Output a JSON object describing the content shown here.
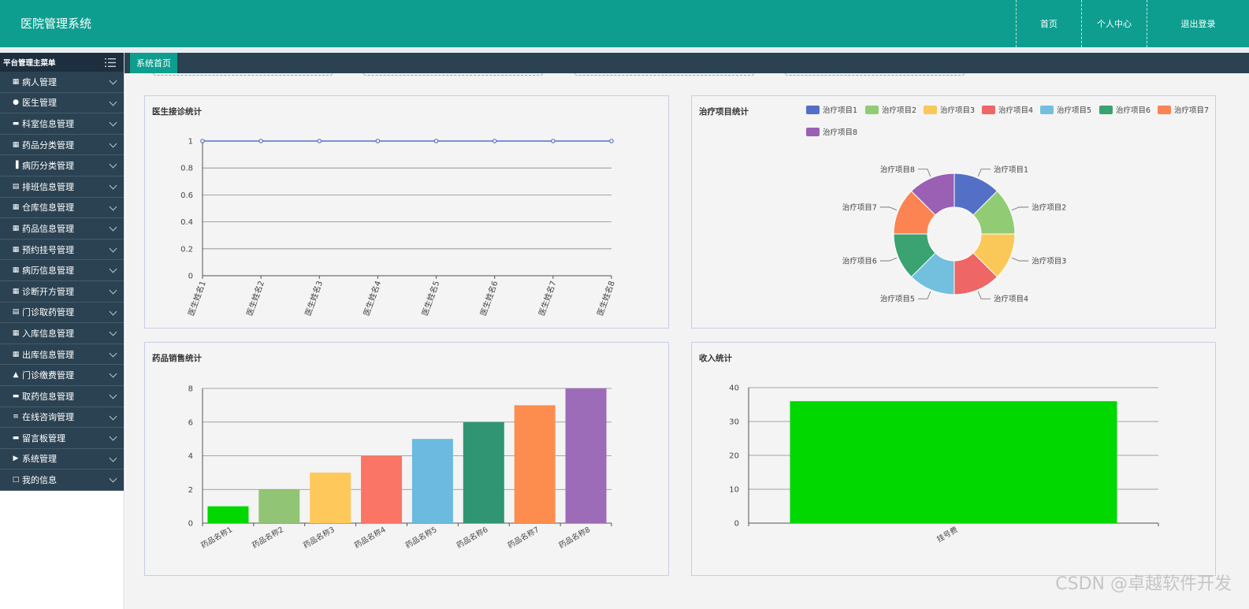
{
  "header": {
    "title": "医院管理系统",
    "nav": [
      "首页",
      "个人中心",
      "退出登录"
    ]
  },
  "sidebar": {
    "title": "平台管理主菜单",
    "items": [
      {
        "label": "病人管理",
        "icon": "grid-icon"
      },
      {
        "label": "医生管理",
        "icon": "pin-icon"
      },
      {
        "label": "科室信息管理",
        "icon": "monitor-icon"
      },
      {
        "label": "药品分类管理",
        "icon": "grid-icon"
      },
      {
        "label": "病历分类管理",
        "icon": "bar-chart-icon"
      },
      {
        "label": "排班信息管理",
        "icon": "clipboard-icon"
      },
      {
        "label": "仓库信息管理",
        "icon": "grid-icon"
      },
      {
        "label": "药品信息管理",
        "icon": "grid-icon"
      },
      {
        "label": "预约挂号管理",
        "icon": "grid-icon"
      },
      {
        "label": "病历信息管理",
        "icon": "grid-icon"
      },
      {
        "label": "诊断开方管理",
        "icon": "grid-icon"
      },
      {
        "label": "门诊取药管理",
        "icon": "clipboard-icon"
      },
      {
        "label": "入库信息管理",
        "icon": "grid-icon"
      },
      {
        "label": "出库信息管理",
        "icon": "table-icon"
      },
      {
        "label": "门诊缴费管理",
        "icon": "user-icon"
      },
      {
        "label": "取药信息管理",
        "icon": "ticket-icon"
      },
      {
        "label": "在线咨询管理",
        "icon": "list-icon"
      },
      {
        "label": "留言板管理",
        "icon": "chat-icon"
      },
      {
        "label": "系统管理",
        "icon": "send-icon"
      },
      {
        "label": "我的信息",
        "icon": "card-icon"
      }
    ]
  },
  "tabs": {
    "active": "系统首页"
  },
  "watermark": "CSDN @卓越软件开发",
  "chart_data": [
    {
      "type": "line",
      "title": "医生接诊统计",
      "categories": [
        "医生姓名1",
        "医生姓名2",
        "医生姓名3",
        "医生姓名4",
        "医生姓名5",
        "医生姓名6",
        "医生姓名7",
        "医生姓名8"
      ],
      "values": [
        1,
        1,
        1,
        1,
        1,
        1,
        1,
        1
      ],
      "ylim": [
        0,
        1
      ],
      "yticks": [
        "0",
        "0.2",
        "0.4",
        "0.6",
        "0.8",
        "1"
      ],
      "color": "#5470c6"
    },
    {
      "type": "pie",
      "title": "治疗项目统计",
      "legend": "top",
      "categories": [
        "治疗项目1",
        "治疗项目2",
        "治疗项目3",
        "治疗项目4",
        "治疗项目5",
        "治疗项目6",
        "治疗项目7",
        "治疗项目8"
      ],
      "values": [
        1,
        1,
        1,
        1,
        1,
        1,
        1,
        1
      ],
      "colors": [
        "#5470c6",
        "#91cc75",
        "#fac858",
        "#ee6666",
        "#73c0de",
        "#3ba272",
        "#fc8452",
        "#9a60b4"
      ]
    },
    {
      "type": "bar",
      "title": "药品销售统计",
      "categories": [
        "药品名称1",
        "药品名称2",
        "药品名称3",
        "药品名称4",
        "药品名称5",
        "药品名称6",
        "药品名称7",
        "药品名称8"
      ],
      "values": [
        1,
        2,
        3,
        4,
        5,
        6,
        7,
        8
      ],
      "ylim": [
        0,
        8
      ],
      "yticks": [
        "0",
        "2",
        "4",
        "6",
        "8"
      ],
      "colors": [
        "#00d800",
        "#91c474",
        "#ffc85a",
        "#fb7566",
        "#6cbae0",
        "#2f9573",
        "#fd8d4f",
        "#9d6cb8"
      ]
    },
    {
      "type": "bar",
      "title": "收入统计",
      "categories": [
        "挂号费"
      ],
      "values": [
        36
      ],
      "ylim": [
        0,
        40
      ],
      "yticks": [
        "0",
        "10",
        "20",
        "30",
        "40"
      ],
      "colors": [
        "#00d800"
      ]
    }
  ]
}
